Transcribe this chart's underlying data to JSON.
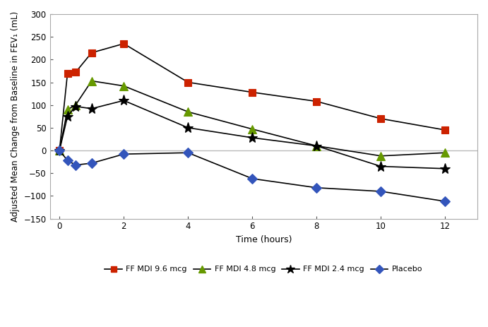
{
  "xlabel": "Time (hours)",
  "ylabel": "Adjusted Mean Change from Baseline in FEV₁ (mL)",
  "xlim": [
    -0.3,
    13
  ],
  "ylim": [
    -150,
    300
  ],
  "yticks": [
    -150,
    -100,
    -50,
    0,
    50,
    100,
    150,
    200,
    250,
    300
  ],
  "xticks": [
    0,
    2,
    4,
    6,
    8,
    10,
    12
  ],
  "series": [
    {
      "label": "FF MDI 9.6 mcg",
      "x": [
        0,
        0.25,
        0.5,
        1,
        2,
        4,
        6,
        8,
        10,
        12
      ],
      "y": [
        0,
        170,
        172,
        215,
        235,
        150,
        128,
        108,
        70,
        45
      ],
      "line_color": "#000000",
      "marker": "s",
      "marker_face_color": "#cc2200",
      "marker_edge_color": "#cc2200",
      "marker_size": 7,
      "linewidth": 1.2
    },
    {
      "label": "FF MDI 4.8 mcg",
      "x": [
        0,
        0.25,
        0.5,
        1,
        2,
        4,
        6,
        8,
        10,
        12
      ],
      "y": [
        0,
        90,
        100,
        153,
        142,
        85,
        47,
        10,
        -12,
        -5
      ],
      "line_color": "#000000",
      "marker": "^",
      "marker_face_color": "#669900",
      "marker_edge_color": "#669900",
      "marker_size": 8,
      "linewidth": 1.2
    },
    {
      "label": "FF MDI 2.4 mcg",
      "x": [
        0,
        0.25,
        0.5,
        1,
        2,
        4,
        6,
        8,
        10,
        12
      ],
      "y": [
        0,
        75,
        97,
        92,
        110,
        50,
        28,
        10,
        -35,
        -40
      ],
      "line_color": "#000000",
      "marker": "*",
      "marker_face_color": "#000000",
      "marker_edge_color": "#000000",
      "marker_size": 11,
      "linewidth": 1.2
    },
    {
      "label": "Placebo",
      "x": [
        0,
        0.25,
        0.5,
        1,
        2,
        4,
        6,
        8,
        10,
        12
      ],
      "y": [
        0,
        -22,
        -32,
        -28,
        -8,
        -5,
        -62,
        -82,
        -90,
        -112
      ],
      "line_color": "#000000",
      "marker": "D",
      "marker_face_color": "#3355bb",
      "marker_edge_color": "#3355bb",
      "marker_size": 7,
      "linewidth": 1.2
    }
  ],
  "background_color": "#ffffff",
  "zero_line_color": "#bbbbbb",
  "border_color": "#aaaaaa",
  "legend_marker_colors": [
    "#cc2200",
    "#669900",
    "#000000",
    "#3355bb"
  ],
  "legend_markers": [
    "s",
    "^",
    "*",
    "D"
  ],
  "legend_labels": [
    "FF MDI 9.6 mcg",
    "FF MDI 4.8 mcg",
    "FF MDI 2.4 mcg",
    "Placebo"
  ]
}
